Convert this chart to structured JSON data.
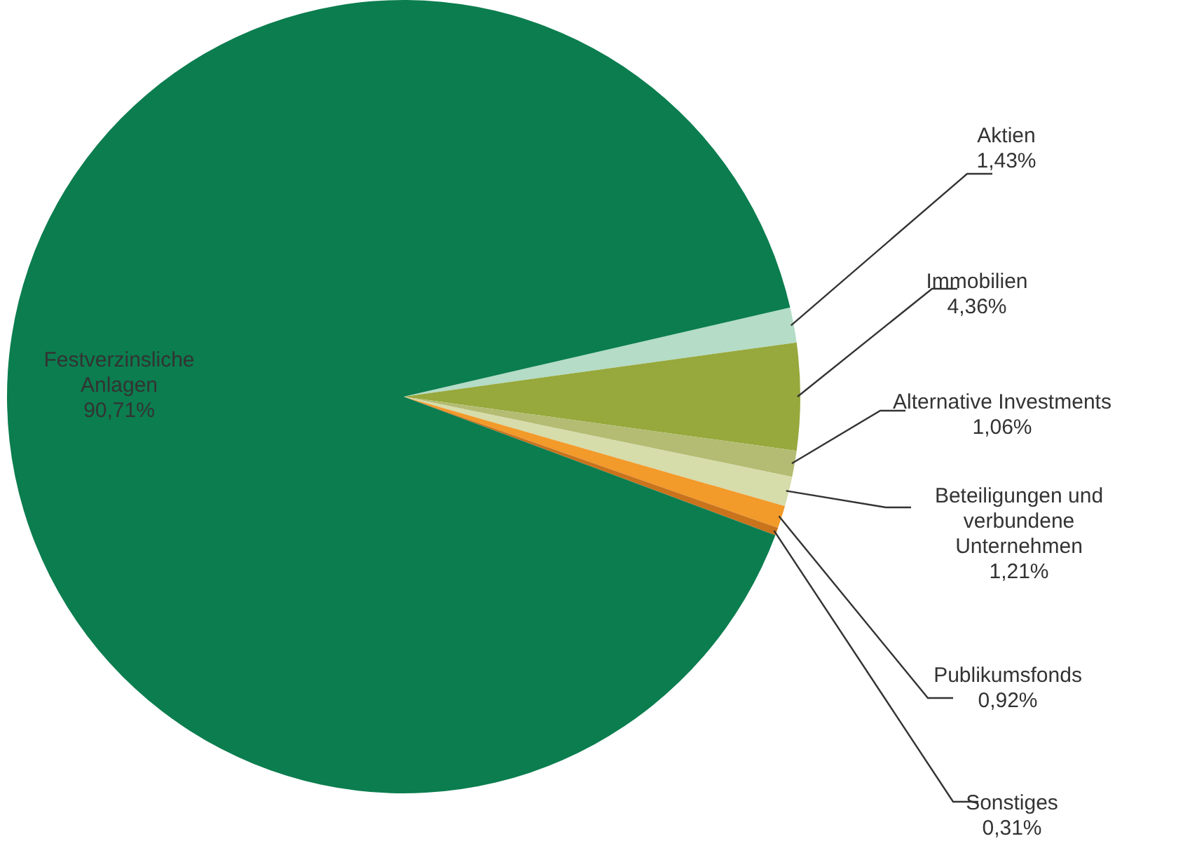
{
  "chart_data": {
    "type": "pie",
    "categories": [
      "Aktien",
      "Immobilien",
      "Alternative Investments",
      "Beteiligungen und verbundene Unternehmen",
      "Publikumsfonds",
      "Sonstiges",
      "Festverzinsliche Anlagen"
    ],
    "values": [
      1.43,
      4.36,
      1.06,
      1.21,
      0.92,
      0.31,
      90.71
    ],
    "value_labels": [
      "1,43%",
      "4,36%",
      "1,06%",
      "1,21%",
      "0,92%",
      "0,31%",
      "90,71%"
    ],
    "colors": [
      "#b4dcc6",
      "#97a83c",
      "#b3bc72",
      "#d6dcaa",
      "#f29a2a",
      "#c9731c",
      "#0b7d4f"
    ],
    "legend": false
  }
}
